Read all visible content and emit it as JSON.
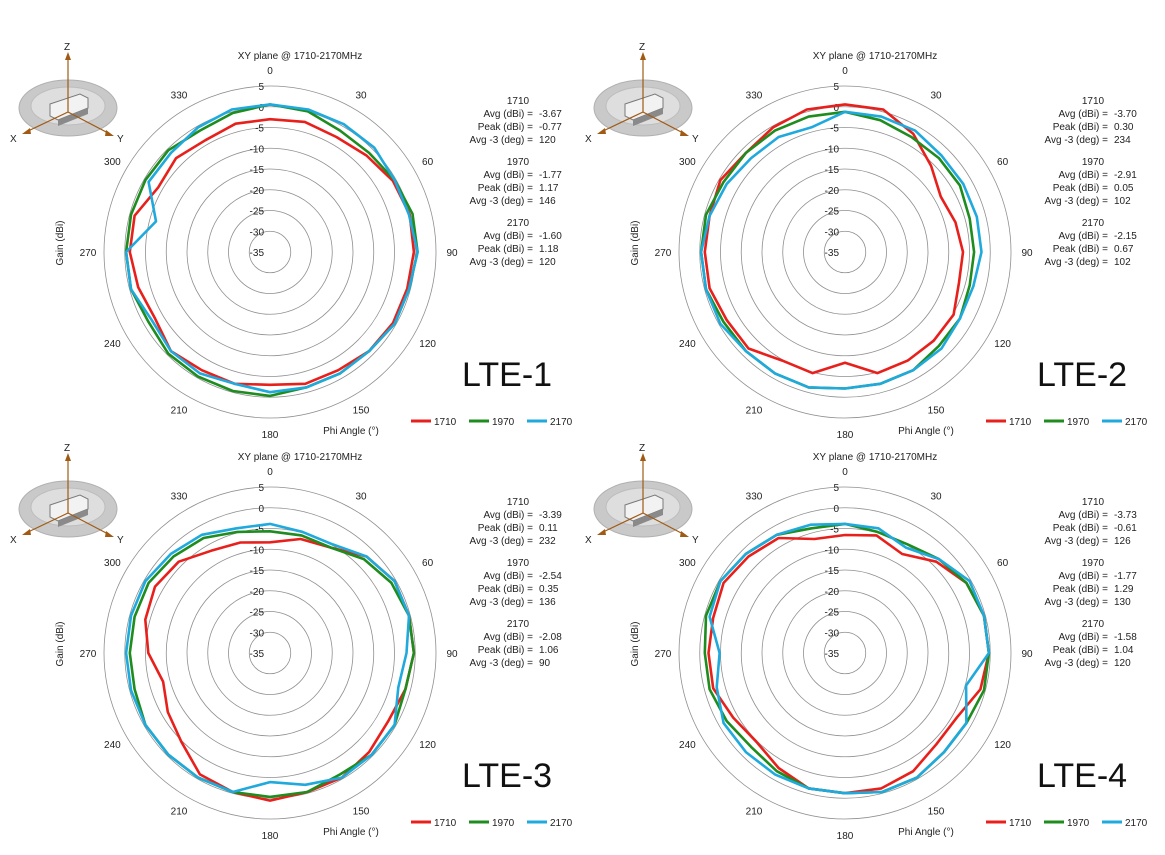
{
  "chart_data": [
    {
      "type": "polar-line",
      "title": "XY plane @ 1710-2170MHz",
      "label": "LTE-1",
      "radial_label": "Gain (dBi)",
      "angle_label": "Phi Angle (°)",
      "radial_ticks": [
        "5",
        "0",
        "-5",
        "-10",
        "-15",
        "-20",
        "-25",
        "-30",
        "-35"
      ],
      "angle_ticks": [
        "0",
        "30",
        "60",
        "90",
        "120",
        "150",
        "180",
        "210",
        "240",
        "270",
        "300",
        "330"
      ],
      "rlim": [
        -40,
        5
      ],
      "legend": [
        "1710",
        "1970",
        "2170"
      ],
      "axes_icon": {
        "z": "Z",
        "x": "X",
        "y": "Y"
      },
      "stats": [
        {
          "freq": "1710",
          "avg_label": "Avg (dBi) =",
          "avg": "-3.67",
          "peak_label": "Peak (dBi) =",
          "peak": "-0.77",
          "avg3_label": "Avg -3 (deg) =",
          "avg3": "120"
        },
        {
          "freq": "1970",
          "avg_label": "Avg (dBi) =",
          "avg": "-1.77",
          "peak_label": "Peak (dBi) =",
          "peak": "1.17",
          "avg3_label": "Avg -3 (deg) =",
          "avg3": "146"
        },
        {
          "freq": "2170",
          "avg_label": "Avg (dBi) =",
          "avg": "-1.60",
          "peak_label": "Peak (dBi) =",
          "peak": "1.18",
          "avg3_label": "Avg -3 (deg) =",
          "avg3": "120"
        }
      ],
      "series": [
        {
          "name": "1710",
          "color": "#e8201c",
          "theta": [
            0,
            15,
            30,
            45,
            60,
            75,
            90,
            105,
            120,
            135,
            150,
            165,
            180,
            195,
            210,
            225,
            240,
            255,
            270,
            285,
            300,
            315,
            330,
            345
          ],
          "values": [
            -4,
            -3.5,
            -4,
            -3,
            -1.5,
            -0.8,
            -1,
            -1.5,
            -1.5,
            -2,
            -3,
            -3,
            -4,
            -3,
            -3,
            -2,
            -4,
            -3,
            -2,
            -2,
            -5,
            -4,
            -5,
            -4
          ]
        },
        {
          "name": "1970",
          "color": "#1e8c1e",
          "theta": [
            0,
            15,
            30,
            45,
            60,
            75,
            90,
            105,
            120,
            135,
            150,
            165,
            180,
            195,
            210,
            225,
            240,
            255,
            270,
            285,
            300,
            315,
            330,
            345
          ],
          "values": [
            0,
            -0.5,
            -2,
            -2,
            -1,
            0,
            0,
            -1,
            -1,
            -2,
            -2,
            -2,
            -1,
            -1,
            -1,
            -1,
            -2,
            -1,
            -1,
            -1,
            -1,
            -1,
            -2,
            -1
          ]
        },
        {
          "name": "2170",
          "color": "#1fa9dc",
          "theta": [
            0,
            15,
            30,
            45,
            60,
            75,
            90,
            105,
            120,
            135,
            150,
            165,
            180,
            195,
            210,
            225,
            240,
            255,
            270,
            285,
            300,
            315,
            330,
            345
          ],
          "values": [
            0,
            0,
            0,
            0,
            -1,
            -1,
            0,
            -1,
            -1,
            -2,
            -2,
            -2,
            -2,
            -3,
            -2,
            -2,
            -3,
            -1,
            -1,
            -8,
            -2,
            -2,
            -1,
            0
          ]
        }
      ]
    },
    {
      "type": "polar-line",
      "title": "XY plane @ 1710-2170MHz",
      "label": "LTE-2",
      "radial_label": "Gain (dBi)",
      "angle_label": "Phi Angle (°)",
      "radial_ticks": [
        "5",
        "0",
        "-5",
        "-10",
        "-15",
        "-20",
        "-25",
        "-30",
        "-35"
      ],
      "angle_ticks": [
        "0",
        "30",
        "60",
        "90",
        "120",
        "150",
        "180",
        "210",
        "240",
        "270",
        "300",
        "330"
      ],
      "rlim": [
        -40,
        5
      ],
      "legend": [
        "1710",
        "1970",
        "2170"
      ],
      "axes_icon": {
        "z": "Z",
        "x": "X",
        "y": "Y"
      },
      "stats": [
        {
          "freq": "1710",
          "avg_label": "Avg (dBi) =",
          "avg": "-3.70",
          "peak_label": "Peak (dBi) =",
          "peak": "0.30",
          "avg3_label": "Avg -3 (deg) =",
          "avg3": "234"
        },
        {
          "freq": "1970",
          "avg_label": "Avg (dBi) =",
          "avg": "-2.91",
          "peak_label": "Peak (dBi) =",
          "peak": "0.05",
          "avg3_label": "Avg -3 (deg) =",
          "avg3": "102"
        },
        {
          "freq": "2170",
          "avg_label": "Avg (dBi) =",
          "avg": "-2.15",
          "peak_label": "Peak (dBi) =",
          "peak": "0.67",
          "avg3_label": "Avg -3 (deg) =",
          "avg3": "102"
        }
      ],
      "series": [
        {
          "name": "1710",
          "color": "#e8201c",
          "theta": [
            0,
            15,
            30,
            45,
            60,
            75,
            90,
            105,
            120,
            135,
            150,
            165,
            180,
            195,
            210,
            225,
            240,
            255,
            270,
            285,
            300,
            315,
            330,
            345
          ],
          "values": [
            0,
            0,
            -3,
            -7,
            -10,
            -9,
            -8,
            -8,
            -6,
            -6,
            -6,
            -6,
            -10,
            -6,
            -6,
            -3,
            -3,
            -2,
            -2,
            -2,
            -1,
            -2,
            -1,
            0
          ]
        },
        {
          "name": "1970",
          "color": "#1e8c1e",
          "theta": [
            0,
            15,
            30,
            45,
            60,
            75,
            90,
            105,
            120,
            135,
            150,
            165,
            180,
            195,
            210,
            225,
            240,
            255,
            270,
            285,
            300,
            315,
            330,
            345
          ],
          "values": [
            -2,
            -3,
            -4,
            -4,
            -4,
            -5,
            -5,
            -5,
            -4,
            -4,
            -3,
            -3,
            -3,
            -2,
            -2,
            -2,
            -2,
            -1,
            -1,
            -1,
            -2,
            -2,
            -2,
            -2
          ]
        },
        {
          "name": "2170",
          "color": "#1fa9dc",
          "theta": [
            0,
            15,
            30,
            45,
            60,
            75,
            90,
            105,
            120,
            135,
            150,
            165,
            180,
            195,
            210,
            225,
            240,
            255,
            270,
            285,
            300,
            315,
            330,
            345
          ],
          "values": [
            -2,
            -2,
            -2,
            -3,
            -3,
            -3,
            -3,
            -4,
            -4,
            -3,
            -3,
            -3,
            -3,
            -2,
            -2,
            -2,
            -1,
            -1,
            -1,
            -2,
            -3,
            -4,
            -4,
            -5
          ]
        }
      ]
    },
    {
      "type": "polar-line",
      "title": "XY plane @ 1710-2170MHz",
      "label": "LTE-3",
      "radial_label": "Gain (dBi)",
      "angle_label": "Phi Angle (°)",
      "radial_ticks": [
        "5",
        "0",
        "-5",
        "-10",
        "-15",
        "-20",
        "-25",
        "-30",
        "-35"
      ],
      "angle_ticks": [
        "0",
        "30",
        "60",
        "90",
        "120",
        "150",
        "180",
        "210",
        "240",
        "270",
        "300",
        "330"
      ],
      "rlim": [
        -40,
        5
      ],
      "legend": [
        "1710",
        "1970",
        "2170"
      ],
      "axes_icon": {
        "z": "Z",
        "x": "X",
        "y": "Y"
      },
      "stats": [
        {
          "freq": "1710",
          "avg_label": "Avg (dBi) =",
          "avg": "-3.39",
          "peak_label": "Peak (dBi) =",
          "peak": "0.11",
          "avg3_label": "Avg -3 (deg) =",
          "avg3": "232"
        },
        {
          "freq": "1970",
          "avg_label": "Avg (dBi) =",
          "avg": "-2.54",
          "peak_label": "Peak (dBi) =",
          "peak": "0.35",
          "avg3_label": "Avg -3 (deg) =",
          "avg3": "136"
        },
        {
          "freq": "2170",
          "avg_label": "Avg (dBi) =",
          "avg": "-2.08",
          "peak_label": "Peak (dBi) =",
          "peak": "1.06",
          "avg3_label": "Avg -3 (deg) =",
          "avg3": "90"
        }
      ],
      "series": [
        {
          "name": "1710",
          "color": "#e8201c",
          "theta": [
            0,
            15,
            30,
            45,
            60,
            75,
            90,
            105,
            120,
            135,
            150,
            165,
            180,
            195,
            210,
            225,
            240,
            255,
            270,
            285,
            300,
            315,
            330,
            345
          ],
          "values": [
            -10,
            -8,
            -7,
            -3,
            -1,
            -1,
            -1,
            -2,
            -3,
            -2,
            -1,
            -1,
            0,
            -1,
            -2,
            -6,
            -8,
            -10,
            -7,
            -5,
            -4,
            -5,
            -8,
            -9
          ]
        },
        {
          "name": "1970",
          "color": "#1e8c1e",
          "theta": [
            0,
            15,
            30,
            45,
            60,
            75,
            90,
            105,
            120,
            135,
            150,
            165,
            180,
            195,
            210,
            225,
            240,
            255,
            270,
            285,
            300,
            315,
            330,
            345
          ],
          "values": [
            -7,
            -7,
            -7,
            -4,
            -2,
            -1,
            -1,
            -2,
            -1,
            -1,
            -2,
            -1,
            -1,
            -1,
            -1,
            -1,
            -1,
            -2,
            -2,
            -2,
            -2,
            -3,
            -4,
            -6
          ]
        },
        {
          "name": "2170",
          "color": "#1fa9dc",
          "theta": [
            0,
            15,
            30,
            45,
            60,
            75,
            90,
            105,
            120,
            135,
            150,
            165,
            180,
            195,
            210,
            225,
            240,
            255,
            270,
            285,
            300,
            315,
            330,
            345
          ],
          "values": [
            -5,
            -6,
            -6,
            -3,
            -1,
            -1,
            -3,
            -4,
            -1,
            -1,
            -1,
            -3,
            -5,
            -1,
            -1,
            -1,
            -1,
            -1,
            -1,
            -1,
            -1,
            -2,
            -3,
            -5
          ]
        }
      ]
    },
    {
      "type": "polar-line",
      "title": "XY plane @ 1710-2170MHz",
      "label": "LTE-4",
      "radial_label": "Gain (dBi)",
      "angle_label": "Phi Angle (°)",
      "radial_ticks": [
        "5",
        "0",
        "-5",
        "-10",
        "-15",
        "-20",
        "-25",
        "-30",
        "-35"
      ],
      "angle_ticks": [
        "0",
        "30",
        "60",
        "90",
        "120",
        "150",
        "180",
        "210",
        "240",
        "270",
        "300",
        "330"
      ],
      "rlim": [
        -40,
        5
      ],
      "legend": [
        "1710",
        "1970",
        "2170"
      ],
      "axes_icon": {
        "z": "Z",
        "x": "X",
        "y": "Y"
      },
      "stats": [
        {
          "freq": "1710",
          "avg_label": "Avg (dBi) =",
          "avg": "-3.73",
          "peak_label": "Peak (dBi) =",
          "peak": "-0.61",
          "avg3_label": "Avg -3 (deg) =",
          "avg3": "126"
        },
        {
          "freq": "1970",
          "avg_label": "Avg (dBi) =",
          "avg": "-1.77",
          "peak_label": "Peak (dBi) =",
          "peak": "1.29",
          "avg3_label": "Avg -3 (deg) =",
          "avg3": "130"
        },
        {
          "freq": "2170",
          "avg_label": "Avg (dBi) =",
          "avg": "-1.58",
          "peak_label": "Peak (dBi) =",
          "peak": "1.04",
          "avg3_label": "Avg -3 (deg) =",
          "avg3": "120"
        }
      ],
      "series": [
        {
          "name": "1710",
          "color": "#e8201c",
          "theta": [
            0,
            15,
            30,
            45,
            60,
            75,
            90,
            105,
            120,
            135,
            150,
            165,
            180,
            195,
            210,
            225,
            240,
            255,
            270,
            285,
            300,
            315,
            330,
            345
          ],
          "values": [
            -8,
            -7,
            -9,
            -5,
            -2,
            -1,
            -1,
            -2,
            -5,
            -5,
            -3,
            -2,
            -2,
            -2,
            -4,
            -6,
            -5,
            -3,
            -3,
            -3,
            -2,
            -3,
            -4,
            -8
          ]
        },
        {
          "name": "1970",
          "color": "#1e8c1e",
          "theta": [
            0,
            15,
            30,
            45,
            60,
            75,
            90,
            105,
            120,
            135,
            150,
            165,
            180,
            195,
            210,
            225,
            240,
            255,
            270,
            285,
            300,
            315,
            330,
            345
          ],
          "values": [
            -5,
            -6,
            -6,
            -4,
            -2,
            -1,
            -1,
            -1,
            -2,
            -2,
            -1,
            -1,
            -2,
            -2,
            -3,
            -4,
            -3,
            -2,
            -2,
            -1,
            -1,
            -2,
            -3,
            -5
          ]
        },
        {
          "name": "2170",
          "color": "#1fa9dc",
          "theta": [
            0,
            15,
            30,
            45,
            60,
            75,
            90,
            105,
            120,
            135,
            150,
            165,
            180,
            195,
            210,
            225,
            240,
            255,
            270,
            285,
            300,
            315,
            330,
            345
          ],
          "values": [
            -5,
            -5,
            -7,
            -4,
            -1,
            -1,
            -1,
            -6,
            -2,
            -2,
            -1,
            -1,
            -2,
            -2,
            -2,
            -2,
            -2,
            -4,
            -6,
            -2,
            -1,
            -2,
            -3,
            -4
          ]
        }
      ]
    }
  ]
}
